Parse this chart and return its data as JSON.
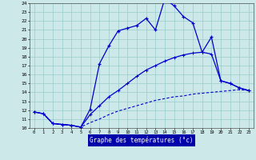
{
  "xlabel": "Graphe des températures (°c)",
  "bg_color": "#cce8e8",
  "grid_color": "#99cccc",
  "line_color": "#0000cc",
  "xmin": 0,
  "xmax": 23,
  "ymin": 10,
  "ymax": 24,
  "curve1_x": [
    0,
    1,
    2,
    3,
    4,
    5,
    6,
    7,
    8,
    9,
    10,
    11,
    12,
    13,
    14,
    15,
    16,
    17,
    18,
    19,
    20,
    21,
    22,
    23
  ],
  "curve1_y": [
    11.8,
    11.6,
    10.5,
    10.4,
    10.3,
    10.1,
    12.1,
    17.2,
    19.2,
    20.9,
    21.2,
    21.5,
    22.3,
    21.0,
    24.5,
    23.7,
    22.5,
    21.8,
    18.5,
    20.2,
    15.3,
    15.0,
    14.5,
    14.2
  ],
  "curve2_x": [
    0,
    1,
    2,
    3,
    4,
    5,
    6,
    7,
    8,
    9,
    10,
    11,
    12,
    13,
    14,
    15,
    16,
    17,
    18,
    19,
    20,
    21,
    22,
    23
  ],
  "curve2_y": [
    11.8,
    11.6,
    10.5,
    10.4,
    10.3,
    10.1,
    11.5,
    12.5,
    13.5,
    14.2,
    15.0,
    15.8,
    16.5,
    17.0,
    17.5,
    17.9,
    18.2,
    18.4,
    18.5,
    18.3,
    15.3,
    15.0,
    14.5,
    14.2
  ],
  "curve3_x": [
    0,
    1,
    2,
    3,
    4,
    5,
    6,
    7,
    8,
    9,
    10,
    11,
    12,
    13,
    14,
    15,
    16,
    17,
    18,
    19,
    20,
    21,
    22,
    23
  ],
  "curve3_y": [
    11.8,
    11.6,
    10.5,
    10.4,
    10.3,
    10.1,
    10.6,
    11.0,
    11.5,
    11.9,
    12.2,
    12.5,
    12.8,
    13.1,
    13.3,
    13.5,
    13.6,
    13.8,
    13.9,
    14.0,
    14.1,
    14.2,
    14.3,
    14.2
  ]
}
